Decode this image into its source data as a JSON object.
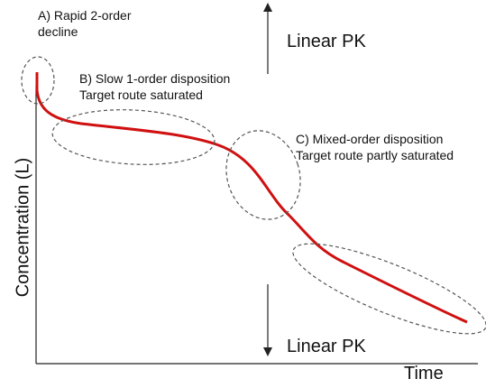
{
  "axes": {
    "x_label": "Time",
    "y_label": "Concentration (L)"
  },
  "annotations": [
    {
      "lines": [
        "A) Rapid 2-order",
        "decline"
      ]
    },
    {
      "lines": [
        "B) Slow 1-order disposition",
        "Target route saturated"
      ]
    },
    {
      "lines": [
        "C) Mixed-order disposition",
        "Target route partly saturated"
      ]
    }
  ],
  "arrows": [
    {
      "label": "Linear PK"
    },
    {
      "label": "Linear PK"
    }
  ]
}
